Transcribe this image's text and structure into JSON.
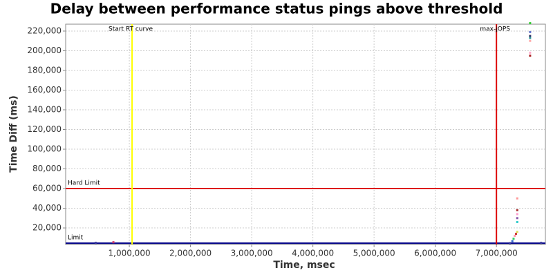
{
  "chart_data": {
    "type": "scatter",
    "title": "Delay between performance status pings above threshold",
    "x_label": "Time, msec",
    "y_label": "Time Diff (ms)",
    "xlim": [
      -40000,
      7800000
    ],
    "ylim": [
      3200,
      227000
    ],
    "xticks": [
      {
        "value": 1000000,
        "label": "1,000,000"
      },
      {
        "value": 2000000,
        "label": "2,000,000"
      },
      {
        "value": 3000000,
        "label": "3,000,000"
      },
      {
        "value": 4000000,
        "label": "4,000,000"
      },
      {
        "value": 5000000,
        "label": "5,000,000"
      },
      {
        "value": 6000000,
        "label": "6,000,000"
      },
      {
        "value": 7000000,
        "label": "7,000,000"
      }
    ],
    "yticks": [
      {
        "value": 20000,
        "label": "20,000"
      },
      {
        "value": 40000,
        "label": "40,000"
      },
      {
        "value": 60000,
        "label": "60,000"
      },
      {
        "value": 80000,
        "label": "80,000"
      },
      {
        "value": 100000,
        "label": "100,000"
      },
      {
        "value": 120000,
        "label": "120,000"
      },
      {
        "value": 140000,
        "label": "140,000"
      },
      {
        "value": 160000,
        "label": "160,000"
      },
      {
        "value": 180000,
        "label": "180,000"
      },
      {
        "value": 200000,
        "label": "200,000"
      },
      {
        "value": 220000,
        "label": "220,000"
      }
    ],
    "grid": true,
    "x": [
      450000,
      740000,
      7220000,
      7260000,
      7280000,
      7300000,
      7320000,
      7340000,
      7340000,
      7340000,
      7340000,
      7340000,
      7340000,
      7550000,
      7550000,
      7550000,
      7550000,
      7550000,
      7550000,
      7550000,
      7730000
    ],
    "values": [
      4800,
      5500,
      4500,
      6500,
      9000,
      12000,
      14000,
      16000,
      50000,
      38000,
      34000,
      30000,
      26000,
      228000,
      219000,
      215000,
      213000,
      210000,
      198000,
      195000,
      4800
    ],
    "colors": [
      "#333399",
      "#cc3366",
      "#333399",
      "#3366cc",
      "#33cc66",
      "#ff99aa",
      "#cc3333",
      "#dddd55",
      "#ff9999",
      "#aa3333",
      "#ff99cc",
      "#8855aa",
      "#33cccc",
      "#33cc33",
      "#6677cc",
      "#333366",
      "#339999",
      "#ffaaaa",
      "#ffaacc",
      "#aa2222",
      "#333399"
    ],
    "vlines": [
      {
        "value": 1045000,
        "label": "Start RT curve",
        "color": "#ffff00"
      },
      {
        "value": 7000000,
        "label": "max-jOPS",
        "color": "#dd0000"
      }
    ],
    "hlines": [
      {
        "value": 60000,
        "label": "Hard Limit",
        "color": "#dd0000"
      },
      {
        "value": 4500,
        "label": "Limit",
        "color": "#000088"
      }
    ]
  }
}
